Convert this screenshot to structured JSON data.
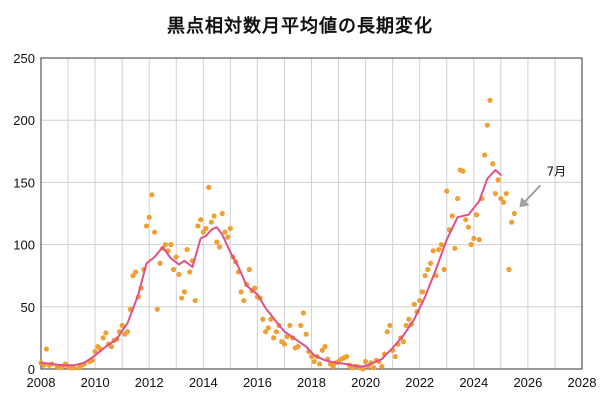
{
  "chart_data": {
    "type": "scatter",
    "title": "黒点相対数月平均値の長期変化",
    "xlabel": "",
    "ylabel": "",
    "xlim": [
      2008,
      2028
    ],
    "ylim": [
      0,
      250
    ],
    "x_ticks": [
      2008,
      2010,
      2012,
      2014,
      2016,
      2018,
      2020,
      2022,
      2024,
      2026,
      2028
    ],
    "y_ticks": [
      0,
      50,
      100,
      150,
      200,
      250
    ],
    "grid": true,
    "colors": {
      "monthly": "#F0A033",
      "smoothed": "#E0508A",
      "arrow": "#A0A0A0",
      "grid": "#D0D0D0"
    },
    "annotation": {
      "text": "7月",
      "x": 2025.5,
      "y": 130
    },
    "series": [
      {
        "kind": "monthly",
        "points": [
          [
            2008.0,
            5
          ],
          [
            2008.1,
            3
          ],
          [
            2008.2,
            16
          ],
          [
            2008.3,
            3
          ],
          [
            2008.4,
            4
          ],
          [
            2008.6,
            2
          ],
          [
            2008.7,
            1
          ],
          [
            2008.8,
            2
          ],
          [
            2008.9,
            4
          ],
          [
            2009.0,
            2
          ],
          [
            2009.1,
            1
          ],
          [
            2009.2,
            1
          ],
          [
            2009.4,
            1
          ],
          [
            2009.5,
            3
          ],
          [
            2009.6,
            4
          ],
          [
            2009.8,
            6
          ],
          [
            2009.9,
            7
          ],
          [
            2010.0,
            14
          ],
          [
            2010.1,
            18
          ],
          [
            2010.2,
            16
          ],
          [
            2010.3,
            25
          ],
          [
            2010.4,
            29
          ],
          [
            2010.5,
            20
          ],
          [
            2010.6,
            18
          ],
          [
            2010.7,
            23
          ],
          [
            2010.8,
            24
          ],
          [
            2010.9,
            30
          ],
          [
            2011.0,
            35
          ],
          [
            2011.1,
            28
          ],
          [
            2011.2,
            30
          ],
          [
            2011.3,
            48
          ],
          [
            2011.4,
            75
          ],
          [
            2011.5,
            78
          ],
          [
            2011.6,
            58
          ],
          [
            2011.7,
            65
          ],
          [
            2011.8,
            80
          ],
          [
            2011.9,
            115
          ],
          [
            2012.0,
            122
          ],
          [
            2012.1,
            140
          ],
          [
            2012.2,
            110
          ],
          [
            2012.3,
            48
          ],
          [
            2012.4,
            85
          ],
          [
            2012.5,
            97
          ],
          [
            2012.6,
            100
          ],
          [
            2012.7,
            95
          ],
          [
            2012.8,
            100
          ],
          [
            2012.9,
            80
          ],
          [
            2013.0,
            90
          ],
          [
            2013.1,
            76
          ],
          [
            2013.2,
            57
          ],
          [
            2013.3,
            62
          ],
          [
            2013.4,
            96
          ],
          [
            2013.5,
            78
          ],
          [
            2013.6,
            87
          ],
          [
            2013.7,
            55
          ],
          [
            2013.8,
            115
          ],
          [
            2013.9,
            120
          ],
          [
            2014.0,
            110
          ],
          [
            2014.1,
            113
          ],
          [
            2014.2,
            146
          ],
          [
            2014.3,
            118
          ],
          [
            2014.4,
            123
          ],
          [
            2014.5,
            102
          ],
          [
            2014.6,
            98
          ],
          [
            2014.7,
            125
          ],
          [
            2014.8,
            110
          ],
          [
            2014.9,
            106
          ],
          [
            2015.0,
            113
          ],
          [
            2015.1,
            90
          ],
          [
            2015.2,
            86
          ],
          [
            2015.3,
            78
          ],
          [
            2015.4,
            62
          ],
          [
            2015.5,
            55
          ],
          [
            2015.6,
            68
          ],
          [
            2015.7,
            80
          ],
          [
            2015.8,
            63
          ],
          [
            2015.9,
            65
          ],
          [
            2016.0,
            58
          ],
          [
            2016.1,
            57
          ],
          [
            2016.2,
            40
          ],
          [
            2016.3,
            30
          ],
          [
            2016.4,
            33
          ],
          [
            2016.5,
            40
          ],
          [
            2016.6,
            25
          ],
          [
            2016.7,
            30
          ],
          [
            2016.8,
            35
          ],
          [
            2016.9,
            22
          ],
          [
            2017.0,
            20
          ],
          [
            2017.1,
            26
          ],
          [
            2017.2,
            35
          ],
          [
            2017.3,
            25
          ],
          [
            2017.4,
            17
          ],
          [
            2017.5,
            18
          ],
          [
            2017.6,
            35
          ],
          [
            2017.7,
            45
          ],
          [
            2017.8,
            28
          ],
          [
            2017.9,
            14
          ],
          [
            2018.0,
            10
          ],
          [
            2018.1,
            6
          ],
          [
            2018.2,
            10
          ],
          [
            2018.3,
            4
          ],
          [
            2018.4,
            15
          ],
          [
            2018.5,
            18
          ],
          [
            2018.6,
            8
          ],
          [
            2018.7,
            4
          ],
          [
            2018.8,
            2
          ],
          [
            2018.9,
            5
          ],
          [
            2019.0,
            6
          ],
          [
            2019.1,
            8
          ],
          [
            2019.2,
            9
          ],
          [
            2019.3,
            10
          ],
          [
            2019.4,
            3
          ],
          [
            2019.5,
            1
          ],
          [
            2019.6,
            2
          ],
          [
            2019.7,
            2
          ],
          [
            2019.8,
            1
          ],
          [
            2019.9,
            0
          ],
          [
            2020.0,
            6
          ],
          [
            2020.1,
            2
          ],
          [
            2020.2,
            5
          ],
          [
            2020.3,
            1
          ],
          [
            2020.4,
            7
          ],
          [
            2020.5,
            6
          ],
          [
            2020.6,
            2
          ],
          [
            2020.7,
            12
          ],
          [
            2020.8,
            30
          ],
          [
            2020.9,
            35
          ],
          [
            2021.0,
            15
          ],
          [
            2021.1,
            10
          ],
          [
            2021.2,
            20
          ],
          [
            2021.3,
            25
          ],
          [
            2021.4,
            22
          ],
          [
            2021.5,
            35
          ],
          [
            2021.6,
            40
          ],
          [
            2021.7,
            36
          ],
          [
            2021.8,
            52
          ],
          [
            2021.9,
            46
          ],
          [
            2022.0,
            55
          ],
          [
            2022.1,
            62
          ],
          [
            2022.2,
            75
          ],
          [
            2022.3,
            80
          ],
          [
            2022.4,
            85
          ],
          [
            2022.5,
            95
          ],
          [
            2022.6,
            75
          ],
          [
            2022.7,
            96
          ],
          [
            2022.8,
            100
          ],
          [
            2022.9,
            80
          ],
          [
            2023.0,
            143
          ],
          [
            2023.1,
            112
          ],
          [
            2023.2,
            123
          ],
          [
            2023.3,
            97
          ],
          [
            2023.4,
            137
          ],
          [
            2023.5,
            160
          ],
          [
            2023.6,
            159
          ],
          [
            2023.7,
            120
          ],
          [
            2023.8,
            114
          ],
          [
            2023.9,
            100
          ],
          [
            2024.0,
            105
          ],
          [
            2024.1,
            124
          ],
          [
            2024.2,
            104
          ],
          [
            2024.3,
            137
          ],
          [
            2024.4,
            172
          ],
          [
            2024.5,
            196
          ],
          [
            2024.6,
            216
          ],
          [
            2024.7,
            165
          ],
          [
            2024.8,
            141
          ],
          [
            2024.9,
            152
          ],
          [
            2025.0,
            137
          ],
          [
            2025.1,
            134
          ],
          [
            2025.2,
            141
          ],
          [
            2025.3,
            80
          ],
          [
            2025.4,
            118
          ],
          [
            2025.5,
            125
          ]
        ]
      },
      {
        "kind": "smoothed",
        "points": [
          [
            2008.0,
            5
          ],
          [
            2008.4,
            4
          ],
          [
            2008.8,
            3
          ],
          [
            2009.2,
            3
          ],
          [
            2009.6,
            5
          ],
          [
            2010.0,
            11
          ],
          [
            2010.4,
            18
          ],
          [
            2010.8,
            24
          ],
          [
            2011.2,
            37
          ],
          [
            2011.6,
            60
          ],
          [
            2011.9,
            85
          ],
          [
            2012.2,
            90
          ],
          [
            2012.5,
            98
          ],
          [
            2012.8,
            89
          ],
          [
            2013.1,
            84
          ],
          [
            2013.3,
            87
          ],
          [
            2013.6,
            82
          ],
          [
            2013.9,
            105
          ],
          [
            2014.1,
            107
          ],
          [
            2014.3,
            112
          ],
          [
            2014.5,
            114
          ],
          [
            2014.7,
            108
          ],
          [
            2015.0,
            94
          ],
          [
            2015.3,
            82
          ],
          [
            2015.6,
            67
          ],
          [
            2016.0,
            60
          ],
          [
            2016.3,
            49
          ],
          [
            2016.7,
            38
          ],
          [
            2017.0,
            30
          ],
          [
            2017.4,
            24
          ],
          [
            2017.8,
            18
          ],
          [
            2018.1,
            11
          ],
          [
            2018.5,
            7
          ],
          [
            2018.9,
            5
          ],
          [
            2019.3,
            4
          ],
          [
            2019.7,
            2
          ],
          [
            2019.9,
            2
          ],
          [
            2020.2,
            4
          ],
          [
            2020.6,
            8
          ],
          [
            2021.0,
            17
          ],
          [
            2021.4,
            27
          ],
          [
            2021.8,
            40
          ],
          [
            2022.2,
            58
          ],
          [
            2022.6,
            80
          ],
          [
            2023.0,
            104
          ],
          [
            2023.4,
            122
          ],
          [
            2023.8,
            124
          ],
          [
            2024.2,
            135
          ],
          [
            2024.5,
            153
          ],
          [
            2024.8,
            160
          ],
          [
            2025.0,
            156
          ]
        ]
      }
    ]
  }
}
